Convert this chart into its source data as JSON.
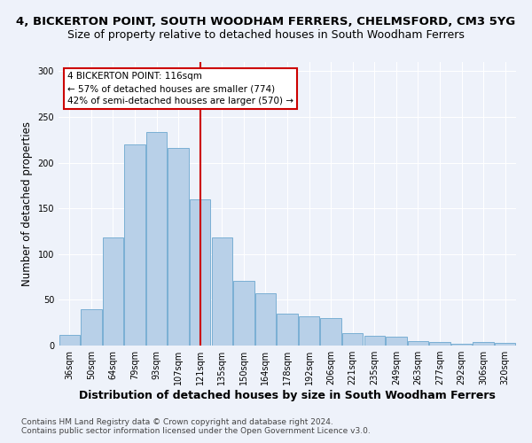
{
  "title1": "4, BICKERTON POINT, SOUTH WOODHAM FERRERS, CHELMSFORD, CM3 5YG",
  "title2": "Size of property relative to detached houses in South Woodham Ferrers",
  "xlabel": "Distribution of detached houses by size in South Woodham Ferrers",
  "ylabel": "Number of detached properties",
  "categories": [
    "36sqm",
    "50sqm",
    "64sqm",
    "79sqm",
    "93sqm",
    "107sqm",
    "121sqm",
    "135sqm",
    "150sqm",
    "164sqm",
    "178sqm",
    "192sqm",
    "206sqm",
    "221sqm",
    "235sqm",
    "249sqm",
    "263sqm",
    "277sqm",
    "292sqm",
    "306sqm",
    "320sqm"
  ],
  "values": [
    12,
    40,
    118,
    220,
    233,
    216,
    160,
    118,
    71,
    57,
    35,
    32,
    30,
    14,
    11,
    10,
    5,
    4,
    2,
    4,
    3
  ],
  "bar_color": "#b8d0e8",
  "bar_edge_color": "#7aafd4",
  "vline_x": 6.0,
  "vline_color": "#cc0000",
  "annotation_text": "4 BICKERTON POINT: 116sqm\n← 57% of detached houses are smaller (774)\n42% of semi-detached houses are larger (570) →",
  "annotation_box_color": "#ffffff",
  "annotation_box_edge_color": "#cc0000",
  "ylim": [
    0,
    310
  ],
  "footnote1": "Contains HM Land Registry data © Crown copyright and database right 2024.",
  "footnote2": "Contains public sector information licensed under the Open Government Licence v3.0.",
  "background_color": "#eef2fa",
  "grid_color": "#ffffff",
  "title1_fontsize": 9.5,
  "title2_fontsize": 9,
  "tick_fontsize": 7,
  "ylabel_fontsize": 8.5,
  "xlabel_fontsize": 9,
  "footnote_fontsize": 6.5
}
